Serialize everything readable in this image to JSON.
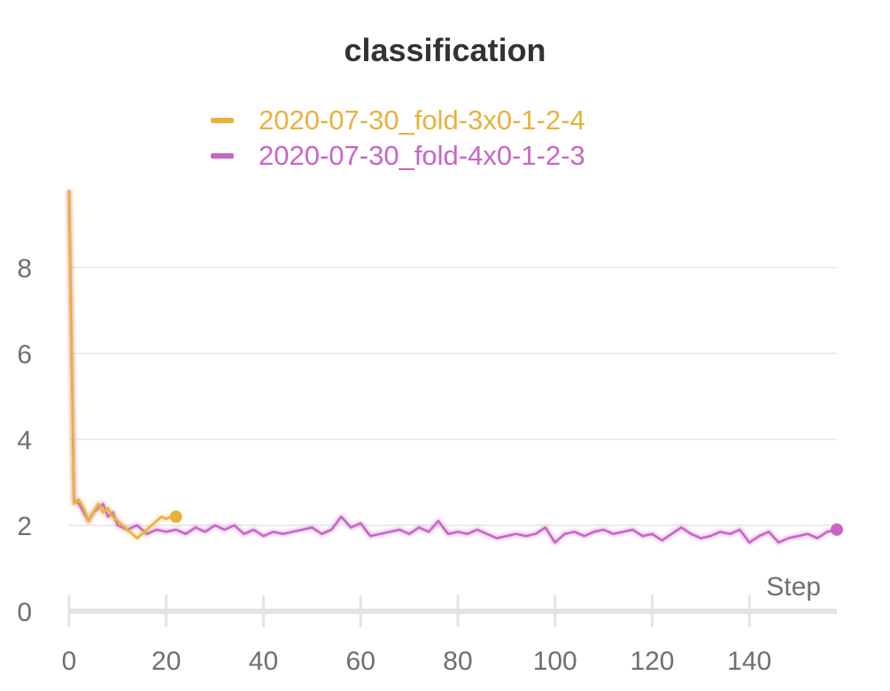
{
  "chart_data": {
    "type": "line",
    "title": "classification",
    "xlabel": "Step",
    "ylabel": "",
    "xlim": [
      0,
      158
    ],
    "ylim": [
      0,
      10
    ],
    "xticks": [
      0,
      20,
      40,
      60,
      80,
      100,
      120,
      140
    ],
    "yticks": [
      0,
      2,
      4,
      6,
      8
    ],
    "grid": true,
    "legend_position": "top-center",
    "series": [
      {
        "name": "2020-07-30_fold-3x0-1-2-4",
        "color": "#e8b23a",
        "x": [
          0,
          1,
          2,
          3,
          4,
          5,
          6,
          7,
          8,
          9,
          10,
          11,
          12,
          13,
          14,
          15,
          16,
          17,
          18,
          19,
          20,
          21,
          22
        ],
        "y": [
          9.8,
          2.5,
          2.6,
          2.4,
          2.1,
          2.3,
          2.5,
          2.3,
          2.4,
          2.2,
          2.1,
          2.0,
          1.9,
          1.8,
          1.7,
          1.8,
          1.9,
          2.0,
          2.1,
          2.2,
          2.15,
          2.2,
          2.2
        ]
      },
      {
        "name": "2020-07-30_fold-4x0-1-2-3",
        "color": "#c765c5",
        "x": [
          0,
          1,
          2,
          3,
          4,
          5,
          6,
          7,
          8,
          9,
          10,
          12,
          14,
          16,
          18,
          20,
          22,
          24,
          26,
          28,
          30,
          32,
          34,
          36,
          38,
          40,
          42,
          44,
          46,
          48,
          50,
          52,
          54,
          56,
          58,
          60,
          62,
          64,
          66,
          68,
          70,
          72,
          74,
          76,
          78,
          80,
          82,
          84,
          86,
          88,
          90,
          92,
          94,
          96,
          98,
          100,
          102,
          104,
          106,
          108,
          110,
          112,
          114,
          116,
          118,
          120,
          122,
          124,
          126,
          128,
          130,
          132,
          134,
          136,
          138,
          140,
          142,
          144,
          146,
          148,
          150,
          152,
          154,
          156,
          158
        ],
        "y": [
          9.8,
          2.6,
          2.5,
          2.3,
          2.1,
          2.3,
          2.4,
          2.5,
          2.2,
          2.3,
          2.0,
          1.9,
          2.0,
          1.8,
          1.9,
          1.85,
          1.9,
          1.8,
          1.95,
          1.85,
          2.0,
          1.9,
          2.0,
          1.8,
          1.9,
          1.75,
          1.85,
          1.8,
          1.85,
          1.9,
          1.95,
          1.8,
          1.9,
          2.2,
          1.95,
          2.05,
          1.75,
          1.8,
          1.85,
          1.9,
          1.8,
          1.95,
          1.85,
          2.1,
          1.8,
          1.85,
          1.8,
          1.9,
          1.8,
          1.7,
          1.75,
          1.8,
          1.75,
          1.8,
          1.95,
          1.6,
          1.8,
          1.85,
          1.75,
          1.85,
          1.9,
          1.8,
          1.85,
          1.9,
          1.75,
          1.8,
          1.65,
          1.8,
          1.95,
          1.8,
          1.7,
          1.75,
          1.85,
          1.8,
          1.9,
          1.6,
          1.75,
          1.85,
          1.6,
          1.7,
          1.75,
          1.8,
          1.7,
          1.85,
          1.9
        ]
      }
    ]
  }
}
